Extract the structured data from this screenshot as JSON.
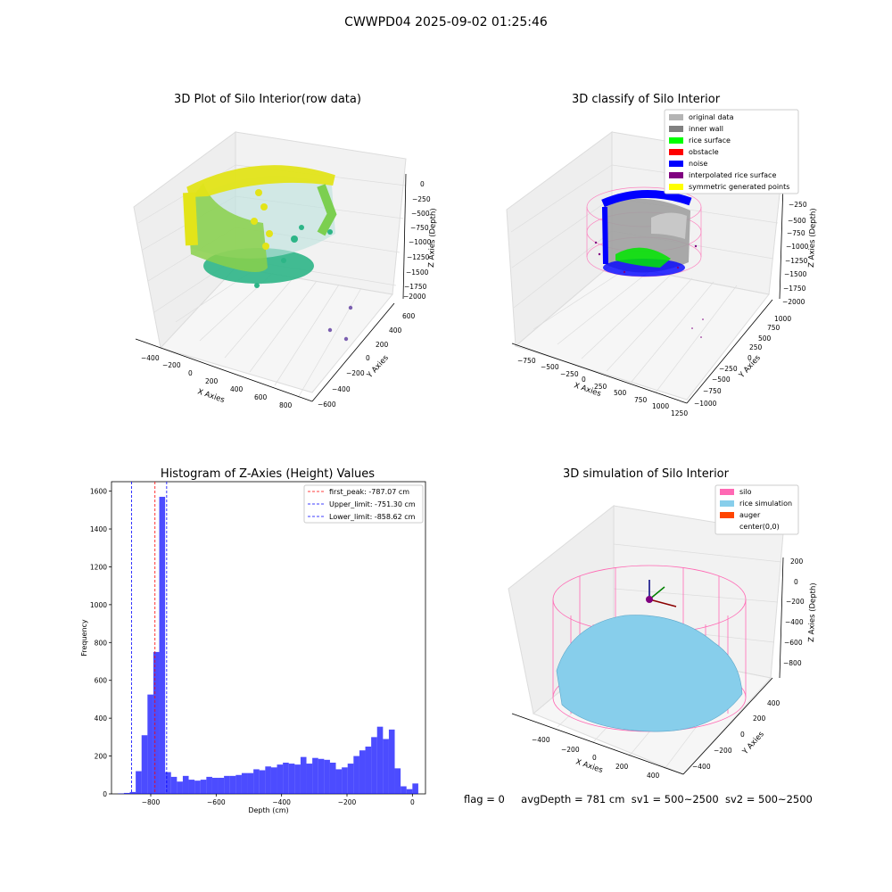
{
  "figure_title": "CWWPD04 2025-09-02 01:25:46",
  "panels": {
    "raw": {
      "title": "3D Plot of Silo Interior(row data)",
      "xlabel": "X Axies",
      "ylabel": "Y Axies",
      "zlabel": "Z Axies (Depth)",
      "xticks": [
        "−400",
        "−200",
        "0",
        "200",
        "400",
        "600",
        "800"
      ],
      "yticks": [
        "−600",
        "−400",
        "−200",
        "0",
        "200",
        "400",
        "600"
      ],
      "zticks": [
        "0",
        "−250",
        "−500",
        "−750",
        "−1000",
        "−1250",
        "−1500",
        "−1750",
        "−2000"
      ]
    },
    "classify": {
      "title": "3D classify of Silo Interior",
      "xlabel": "X Axies",
      "ylabel": "Y Axies",
      "zlabel": "Z Axies (Depth)",
      "xticks": [
        "−750",
        "−500",
        "−250",
        "0",
        "250",
        "500",
        "750",
        "1000",
        "1250"
      ],
      "yticks": [
        "−1000",
        "−750",
        "−500",
        "−250",
        "0",
        "250",
        "500",
        "750",
        "1000"
      ],
      "zticks": [
        "−250",
        "−500",
        "−750",
        "−1000",
        "−1250",
        "−1500",
        "−1750",
        "−2000"
      ],
      "legend": [
        {
          "label": "original data",
          "color": "#b4b4b4"
        },
        {
          "label": "inner wall",
          "color": "#808080"
        },
        {
          "label": "rice surface",
          "color": "#00ff00"
        },
        {
          "label": "obstacle",
          "color": "#ff0000"
        },
        {
          "label": "noise",
          "color": "#0000ff"
        },
        {
          "label": "interpolated rice surface",
          "color": "#800080"
        },
        {
          "label": "symmetric generated points",
          "color": "#ffff00"
        }
      ]
    },
    "simulation": {
      "title": "3D simulation of Silo Interior",
      "xlabel": "X Axies",
      "ylabel": "Y Axies",
      "zlabel": "Z Axies (Depth)",
      "xticks": [
        "−400",
        "−200",
        "0",
        "200",
        "400"
      ],
      "yticks": [
        "−400",
        "−200",
        "0",
        "200",
        "400"
      ],
      "zticks": [
        "200",
        "0",
        "−200",
        "−400",
        "−600",
        "−800"
      ],
      "legend": [
        {
          "label": "silo",
          "color": "#ff69b4"
        },
        {
          "label": "rice simulation",
          "color": "#87ceeb"
        },
        {
          "label": "auger",
          "color": "#ff4500"
        },
        {
          "label": "center(0,0)",
          "color": "#ffffff"
        }
      ]
    }
  },
  "chart_data": {
    "type": "bar",
    "title": "Histogram of Z-Axies (Height) Values",
    "xlabel": "Depth (cm)",
    "ylabel": "Frequency",
    "xlim": [
      -920,
      40
    ],
    "ylim": [
      0,
      1650
    ],
    "xticks": [
      -800,
      -600,
      -400,
      -200,
      0
    ],
    "yticks": [
      0,
      200,
      400,
      600,
      800,
      1000,
      1200,
      1400,
      1600
    ],
    "bin_width": 18,
    "bin_start": -900,
    "values": [
      2,
      5,
      10,
      120,
      310,
      525,
      750,
      1570,
      115,
      90,
      65,
      95,
      75,
      70,
      75,
      90,
      85,
      85,
      95,
      95,
      100,
      110,
      110,
      130,
      125,
      145,
      140,
      155,
      165,
      160,
      155,
      195,
      160,
      190,
      185,
      180,
      165,
      130,
      140,
      160,
      200,
      230,
      250,
      300,
      355,
      290,
      340,
      135,
      40,
      25,
      55
    ],
    "bar_color": "#0000ff",
    "vlines": [
      {
        "x": -787.07,
        "color": "#ff0000",
        "label": "first_peak: -787.07 cm"
      },
      {
        "x": -751.3,
        "color": "#0000ff",
        "label": "Upper_limit: -751.30 cm"
      },
      {
        "x": -858.62,
        "color": "#0000ff",
        "label": "Lower_limit: -858.62 cm"
      }
    ],
    "legend_position": "upper right"
  },
  "status": {
    "flag": "flag = 0",
    "avg_depth": "avgDepth = 781 cm",
    "sv1": "sv1 = 500~2500",
    "sv2": "sv2 = 500~2500"
  }
}
